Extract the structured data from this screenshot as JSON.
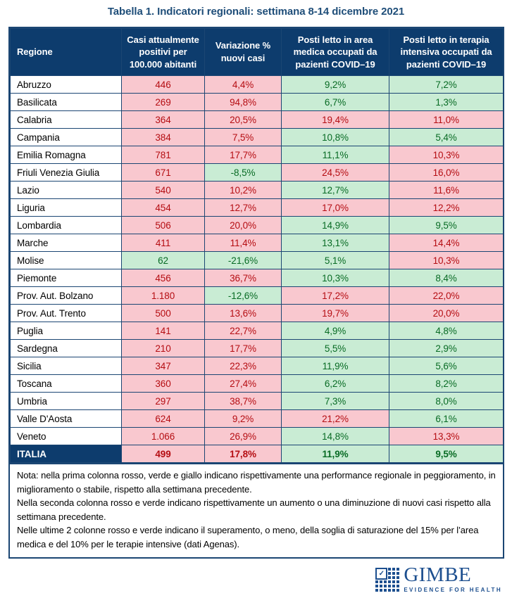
{
  "title": "Tabella 1. Indicatori regionali: settimana 8-14 dicembre 2021",
  "colors": {
    "navy_header": "#0d3c6d",
    "border": "#1b4673",
    "bad_bg": "#f9c8cf",
    "bad_text": "#b50d12",
    "good_bg": "#c9ecd4",
    "good_text": "#086b24",
    "title_text": "#1f4e79",
    "logo_blue": "#1d4f8f"
  },
  "table": {
    "columns": [
      "Regione",
      "Casi attualmente positivi per 100.000 abitanti",
      "Variazione % nuovi casi",
      "Posti letto in area medica occupati da pazienti COVID–19",
      "Posti letto in terapia intensiva occupati da pazienti COVID–19"
    ],
    "rows": [
      {
        "region": "Abruzzo",
        "total": false,
        "values": [
          {
            "v": "446",
            "s": "red"
          },
          {
            "v": "4,4%",
            "s": "red"
          },
          {
            "v": "9,2%",
            "s": "green"
          },
          {
            "v": "7,2%",
            "s": "green"
          }
        ]
      },
      {
        "region": "Basilicata",
        "total": false,
        "values": [
          {
            "v": "269",
            "s": "red"
          },
          {
            "v": "94,8%",
            "s": "red"
          },
          {
            "v": "6,7%",
            "s": "green"
          },
          {
            "v": "1,3%",
            "s": "green"
          }
        ]
      },
      {
        "region": "Calabria",
        "total": false,
        "values": [
          {
            "v": "364",
            "s": "red"
          },
          {
            "v": "20,5%",
            "s": "red"
          },
          {
            "v": "19,4%",
            "s": "red"
          },
          {
            "v": "11,0%",
            "s": "red"
          }
        ]
      },
      {
        "region": "Campania",
        "total": false,
        "values": [
          {
            "v": "384",
            "s": "red"
          },
          {
            "v": "7,5%",
            "s": "red"
          },
          {
            "v": "10,8%",
            "s": "green"
          },
          {
            "v": "5,4%",
            "s": "green"
          }
        ]
      },
      {
        "region": "Emilia Romagna",
        "total": false,
        "values": [
          {
            "v": "781",
            "s": "red"
          },
          {
            "v": "17,7%",
            "s": "red"
          },
          {
            "v": "11,1%",
            "s": "green"
          },
          {
            "v": "10,3%",
            "s": "red"
          }
        ]
      },
      {
        "region": "Friuli Venezia Giulia",
        "total": false,
        "values": [
          {
            "v": "671",
            "s": "red"
          },
          {
            "v": "-8,5%",
            "s": "green"
          },
          {
            "v": "24,5%",
            "s": "red"
          },
          {
            "v": "16,0%",
            "s": "red"
          }
        ]
      },
      {
        "region": "Lazio",
        "total": false,
        "values": [
          {
            "v": "540",
            "s": "red"
          },
          {
            "v": "10,2%",
            "s": "red"
          },
          {
            "v": "12,7%",
            "s": "green"
          },
          {
            "v": "11,6%",
            "s": "red"
          }
        ]
      },
      {
        "region": "Liguria",
        "total": false,
        "values": [
          {
            "v": "454",
            "s": "red"
          },
          {
            "v": "12,7%",
            "s": "red"
          },
          {
            "v": "17,0%",
            "s": "red"
          },
          {
            "v": "12,2%",
            "s": "red"
          }
        ]
      },
      {
        "region": "Lombardia",
        "total": false,
        "values": [
          {
            "v": "506",
            "s": "red"
          },
          {
            "v": "20,0%",
            "s": "red"
          },
          {
            "v": "14,9%",
            "s": "green"
          },
          {
            "v": "9,5%",
            "s": "green"
          }
        ]
      },
      {
        "region": "Marche",
        "total": false,
        "values": [
          {
            "v": "411",
            "s": "red"
          },
          {
            "v": "11,4%",
            "s": "red"
          },
          {
            "v": "13,1%",
            "s": "green"
          },
          {
            "v": "14,4%",
            "s": "red"
          }
        ]
      },
      {
        "region": "Molise",
        "total": false,
        "values": [
          {
            "v": "62",
            "s": "green"
          },
          {
            "v": "-21,6%",
            "s": "green"
          },
          {
            "v": "5,1%",
            "s": "green"
          },
          {
            "v": "10,3%",
            "s": "red"
          }
        ]
      },
      {
        "region": "Piemonte",
        "total": false,
        "values": [
          {
            "v": "456",
            "s": "red"
          },
          {
            "v": "36,7%",
            "s": "red"
          },
          {
            "v": "10,3%",
            "s": "green"
          },
          {
            "v": "8,4%",
            "s": "green"
          }
        ]
      },
      {
        "region": "Prov. Aut. Bolzano",
        "total": false,
        "values": [
          {
            "v": "1.180",
            "s": "red"
          },
          {
            "v": "-12,6%",
            "s": "green"
          },
          {
            "v": "17,2%",
            "s": "red"
          },
          {
            "v": "22,0%",
            "s": "red"
          }
        ]
      },
      {
        "region": "Prov. Aut. Trento",
        "total": false,
        "values": [
          {
            "v": "500",
            "s": "red"
          },
          {
            "v": "13,6%",
            "s": "red"
          },
          {
            "v": "19,7%",
            "s": "red"
          },
          {
            "v": "20,0%",
            "s": "red"
          }
        ]
      },
      {
        "region": "Puglia",
        "total": false,
        "values": [
          {
            "v": "141",
            "s": "red"
          },
          {
            "v": "22,7%",
            "s": "red"
          },
          {
            "v": "4,9%",
            "s": "green"
          },
          {
            "v": "4,8%",
            "s": "green"
          }
        ]
      },
      {
        "region": "Sardegna",
        "total": false,
        "values": [
          {
            "v": "210",
            "s": "red"
          },
          {
            "v": "17,7%",
            "s": "red"
          },
          {
            "v": "5,5%",
            "s": "green"
          },
          {
            "v": "2,9%",
            "s": "green"
          }
        ]
      },
      {
        "region": "Sicilia",
        "total": false,
        "values": [
          {
            "v": "347",
            "s": "red"
          },
          {
            "v": "22,3%",
            "s": "red"
          },
          {
            "v": "11,9%",
            "s": "green"
          },
          {
            "v": "5,6%",
            "s": "green"
          }
        ]
      },
      {
        "region": "Toscana",
        "total": false,
        "values": [
          {
            "v": "360",
            "s": "red"
          },
          {
            "v": "27,4%",
            "s": "red"
          },
          {
            "v": "6,2%",
            "s": "green"
          },
          {
            "v": "8,2%",
            "s": "green"
          }
        ]
      },
      {
        "region": "Umbria",
        "total": false,
        "values": [
          {
            "v": "297",
            "s": "red"
          },
          {
            "v": "38,7%",
            "s": "red"
          },
          {
            "v": "7,3%",
            "s": "green"
          },
          {
            "v": "8,0%",
            "s": "green"
          }
        ]
      },
      {
        "region": "Valle D'Aosta",
        "total": false,
        "values": [
          {
            "v": "624",
            "s": "red"
          },
          {
            "v": "9,2%",
            "s": "red"
          },
          {
            "v": "21,2%",
            "s": "red"
          },
          {
            "v": "6,1%",
            "s": "green"
          }
        ]
      },
      {
        "region": "Veneto",
        "total": false,
        "values": [
          {
            "v": "1.066",
            "s": "red"
          },
          {
            "v": "26,9%",
            "s": "red"
          },
          {
            "v": "14,8%",
            "s": "green"
          },
          {
            "v": "13,3%",
            "s": "red"
          }
        ]
      },
      {
        "region": "ITALIA",
        "total": true,
        "values": [
          {
            "v": "499",
            "s": "red"
          },
          {
            "v": "17,8%",
            "s": "red"
          },
          {
            "v": "11,9%",
            "s": "green"
          },
          {
            "v": "9,5%",
            "s": "green"
          }
        ]
      }
    ]
  },
  "note": {
    "paragraphs": [
      "Nota: nella prima colonna rosso, verde e giallo indicano rispettivamente una performance regionale in peggioramento, in miglioramento o stabile, rispetto alla settimana precedente.",
      "Nella seconda colonna rosso e verde indicano rispettivamente un aumento o una diminuzione di nuovi casi rispetto alla settimana precedente.",
      "Nelle ultime 2 colonne rosso e verde indicano il superamento, o meno, della soglia di saturazione del 15% per l’area medica e del 10% per le terapie intensive (dati Agenas)."
    ]
  },
  "logo": {
    "name": "GIMBE",
    "tagline": "EVIDENCE FOR HEALTH",
    "check_glyph": "✓"
  }
}
